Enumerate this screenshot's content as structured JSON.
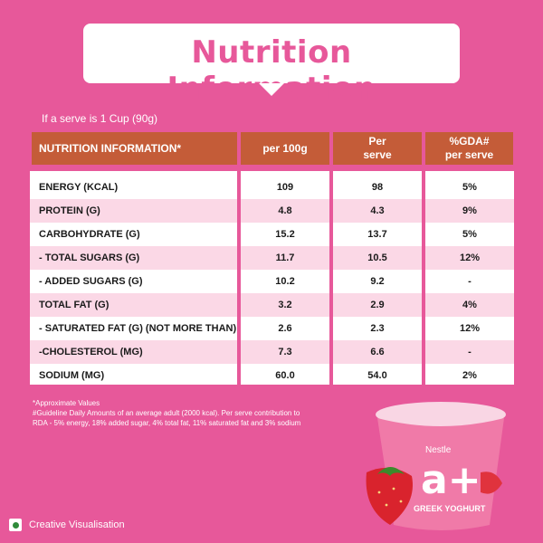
{
  "title": "Nutrition Information",
  "serve_note": "If a serve is 1 Cup (90g)",
  "table": {
    "headers": [
      "NUTRITION INFORMATION*",
      "per 100g",
      "Per serve",
      "%GDA# per serve"
    ],
    "header_lines": {
      "per_serve": [
        "Per",
        "serve"
      ],
      "gda": [
        "%GDA#",
        "per serve"
      ]
    },
    "rows": [
      {
        "label": "ENERGY (KCAL)",
        "per100": "109",
        "perserve": "98",
        "gda": "5%"
      },
      {
        "label": "PROTEIN (G)",
        "per100": "4.8",
        "perserve": "4.3",
        "gda": "9%"
      },
      {
        "label": "CARBOHYDRATE (G)",
        "per100": "15.2",
        "perserve": "13.7",
        "gda": "5%"
      },
      {
        "label": "- TOTAL SUGARS (G)",
        "per100": "11.7",
        "perserve": "10.5",
        "gda": "12%"
      },
      {
        "label": "- ADDED SUGARS (G)",
        "per100": "10.2",
        "perserve": "9.2",
        "gda": "-"
      },
      {
        "label": "TOTAL FAT (G)",
        "per100": "3.2",
        "perserve": "2.9",
        "gda": "4%"
      },
      {
        "label": "- SATURATED FAT (G) (NOT MORE THAN)",
        "per100": "2.6",
        "perserve": "2.3",
        "gda": "12%"
      },
      {
        "label": "-CHOLESTEROL (MG)",
        "per100": "7.3",
        "perserve": "6.6",
        "gda": "-"
      },
      {
        "label": "SODIUM (MG)",
        "per100": "60.0",
        "perserve": "54.0",
        "gda": "2%"
      }
    ]
  },
  "footnotes": [
    "*Approximate Values",
    "#Guideline Daily Amounts of an average adult (2000 kcal). Per serve contribution to",
    "RDA - 5% energy, 18% added sugar, 4% total fat, 11% saturated fat and 3% sodium"
  ],
  "product": {
    "brand": "Nestle",
    "logo": "a+",
    "name": "GREEK YOGHURT"
  },
  "creative_note": "Creative Visualisation",
  "colors": {
    "background": "#e7589a",
    "header": "#c45c38",
    "row_alt": "#fbd8e6",
    "row_base": "#ffffff"
  }
}
